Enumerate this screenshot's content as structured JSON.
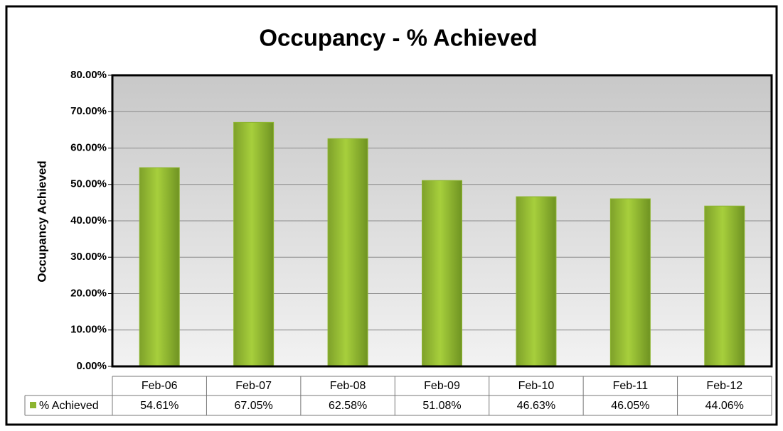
{
  "chart_data": {
    "type": "bar",
    "title": "Occupancy - % Achieved",
    "y_label": "Occupancy Achieved",
    "categories": [
      "Feb-06",
      "Feb-07",
      "Feb-08",
      "Feb-09",
      "Feb-10",
      "Feb-11",
      "Feb-12"
    ],
    "series": [
      {
        "name": "% Achieved",
        "color": "#8db530",
        "values": [
          54.61,
          67.05,
          62.58,
          51.08,
          46.63,
          46.05,
          44.06
        ],
        "value_labels": [
          "54.61%",
          "67.05%",
          "62.58%",
          "51.08%",
          "46.63%",
          "46.05%",
          "44.06%"
        ]
      }
    ],
    "ylim": [
      0,
      80
    ],
    "yticks": [
      {
        "value": 0,
        "label": "0.00%"
      },
      {
        "value": 10,
        "label": "10.00%"
      },
      {
        "value": 20,
        "label": "20.00%"
      },
      {
        "value": 30,
        "label": "30.00%"
      },
      {
        "value": 40,
        "label": "40.00%"
      },
      {
        "value": 50,
        "label": "50.00%"
      },
      {
        "value": 60,
        "label": "60.00%"
      },
      {
        "value": 70,
        "label": "70.00%"
      },
      {
        "value": 80,
        "label": "80.00%"
      }
    ],
    "grid": true
  }
}
